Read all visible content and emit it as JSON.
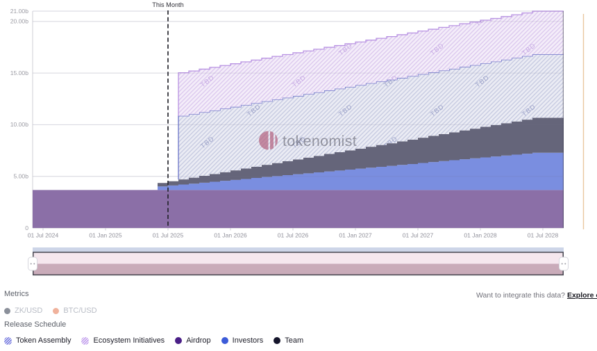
{
  "watermark": {
    "text": "tokenomist",
    "logo_color": "#b2607e",
    "text_color": "#50505c"
  },
  "api_prompt": {
    "text": "Want to integrate this data? ",
    "link": "Explore our API"
  },
  "metrics": {
    "title": "Metrics",
    "items": [
      {
        "label": "ZK/USD",
        "color": "#8b909a",
        "state": "inactive"
      },
      {
        "label": "BTC/USD",
        "color": "#f0b29c",
        "state": "inactive"
      }
    ]
  },
  "release_schedule": {
    "title": "Release Schedule",
    "items": [
      {
        "label": "Token Assembly",
        "style": "hatched",
        "color": "#575cd8"
      },
      {
        "label": "Ecosystem Initiatives",
        "style": "hatched",
        "color": "#b388e8"
      },
      {
        "label": "Airdrop",
        "style": "solid",
        "color": "#4a1f87"
      },
      {
        "label": "Investors",
        "style": "solid",
        "color": "#3c5bd8"
      },
      {
        "label": "Team",
        "style": "solid",
        "color": "#15152b"
      }
    ]
  },
  "chart_data": {
    "type": "area",
    "stacked": true,
    "stepped": true,
    "value_unit": "billions of tokens",
    "total_supply": 21,
    "tbd_label": "TBD",
    "watermark": "tokenomist",
    "annotation": {
      "label": "This Month",
      "month_index": 13
    },
    "months_span": {
      "start": "2024-06",
      "end": "2028-09",
      "count": 52
    },
    "y_axis": {
      "max": 21,
      "ticks": [
        "21.00b",
        "20.00b",
        "15.00b",
        "10.00b",
        "5.00b",
        "0"
      ],
      "tick_values": [
        21,
        20,
        15,
        10,
        5,
        0
      ]
    },
    "x_axis": {
      "ticks": [
        "01 Jul 2024",
        "01 Jan 2025",
        "01 Jul 2025",
        "01 Jan 2026",
        "01 Jul 2026",
        "01 Jan 2027",
        "01 Jul 2027",
        "01 Jan 2028",
        "01 Jul 2028"
      ],
      "tick_month_indices": [
        1,
        7,
        13,
        19,
        25,
        31,
        37,
        43,
        49
      ]
    },
    "series": [
      {
        "name": "Airdrop",
        "style": "solid",
        "color": "#8b6fa7",
        "values": [
          3.675,
          3.675,
          3.675,
          3.675,
          3.675,
          3.675,
          3.675,
          3.675,
          3.675,
          3.675,
          3.675,
          3.675,
          3.675,
          3.675,
          3.675,
          3.675,
          3.675,
          3.675,
          3.675,
          3.675,
          3.675,
          3.675,
          3.675,
          3.675,
          3.675,
          3.675,
          3.675,
          3.675,
          3.675,
          3.675,
          3.675,
          3.675,
          3.675,
          3.675,
          3.675,
          3.675,
          3.675,
          3.675,
          3.675,
          3.675,
          3.675,
          3.675,
          3.675,
          3.675,
          3.675,
          3.675,
          3.675,
          3.675,
          3.675,
          3.675,
          3.675,
          3.675
        ]
      },
      {
        "name": "Investors",
        "style": "solid",
        "color": "#7a8ee0",
        "values": [
          0,
          0,
          0,
          0,
          0,
          0,
          0,
          0,
          0,
          0,
          0,
          0,
          0.35,
          0.44,
          0.53,
          0.62,
          0.71,
          0.8,
          0.89,
          0.98,
          1.07,
          1.17,
          1.26,
          1.35,
          1.44,
          1.53,
          1.62,
          1.71,
          1.8,
          1.89,
          1.98,
          2.07,
          2.16,
          2.25,
          2.34,
          2.43,
          2.52,
          2.62,
          2.71,
          2.8,
          2.89,
          2.98,
          3.07,
          3.16,
          3.25,
          3.34,
          3.43,
          3.52,
          3.61,
          3.61,
          3.61,
          3.61
        ]
      },
      {
        "name": "Team",
        "style": "solid",
        "color": "#65657a",
        "values": [
          0,
          0,
          0,
          0,
          0,
          0,
          0,
          0,
          0,
          0,
          0,
          0,
          0.33,
          0.41,
          0.5,
          0.58,
          0.67,
          0.75,
          0.84,
          0.92,
          1.01,
          1.09,
          1.18,
          1.26,
          1.35,
          1.43,
          1.52,
          1.6,
          1.69,
          1.77,
          1.86,
          1.94,
          2.03,
          2.11,
          2.19,
          2.28,
          2.36,
          2.45,
          2.53,
          2.62,
          2.7,
          2.79,
          2.87,
          2.96,
          3.04,
          3.13,
          3.21,
          3.3,
          3.38,
          3.38,
          3.38,
          3.38
        ]
      },
      {
        "name": "Token Assembly",
        "style": "hatched",
        "fill_bg": "#eaebf4",
        "hatch_color": "#c7cbe1",
        "tbd_color": "#8f96c2",
        "stroke": "#6a73c8",
        "values": [
          0,
          0,
          0,
          0,
          0,
          0,
          0,
          0,
          0,
          0,
          0,
          0,
          0,
          0,
          6.15,
          6.15,
          6.15,
          6.15,
          6.15,
          6.15,
          6.15,
          6.15,
          6.15,
          6.15,
          6.15,
          6.15,
          6.15,
          6.15,
          6.15,
          6.15,
          6.15,
          6.15,
          6.15,
          6.15,
          6.15,
          6.15,
          6.15,
          6.15,
          6.15,
          6.15,
          6.15,
          6.15,
          6.15,
          6.15,
          6.15,
          6.15,
          6.15,
          6.15,
          6.15,
          6.15,
          6.15,
          6.15
        ]
      },
      {
        "name": "Ecosystem Initiatives",
        "style": "hatched",
        "fill_bg": "#f4ecf9",
        "hatch_color": "#dcc9ee",
        "tbd_color": "#bfa0e2",
        "stroke": "#b892e2",
        "values": [
          0,
          0,
          0,
          0,
          0,
          0,
          0,
          0,
          0,
          0,
          0,
          0,
          0,
          0,
          4.18,
          4.18,
          4.18,
          4.18,
          4.18,
          4.18,
          4.18,
          4.18,
          4.18,
          4.18,
          4.18,
          4.18,
          4.18,
          4.18,
          4.18,
          4.18,
          4.18,
          4.18,
          4.18,
          4.18,
          4.18,
          4.18,
          4.18,
          4.18,
          4.18,
          4.18,
          4.18,
          4.18,
          4.18,
          4.18,
          4.18,
          4.18,
          4.18,
          4.18,
          4.18,
          4.18,
          4.18,
          4.18
        ]
      }
    ]
  }
}
